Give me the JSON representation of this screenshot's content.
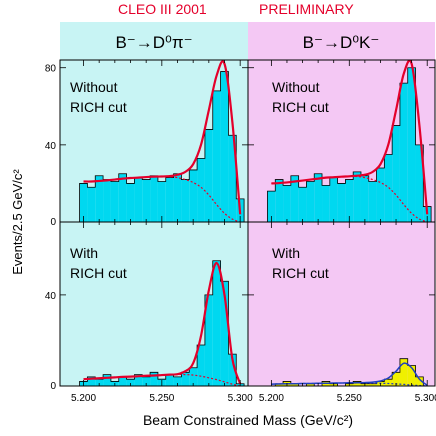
{
  "header": {
    "experiment": "CLEO III 2001",
    "status": "PRELIMINARY",
    "left_channel": "B⁻→D⁰π⁻",
    "right_channel": "B⁻→D⁰K⁻"
  },
  "labels": {
    "ylabel": "Events/2.5 GeV/c²",
    "xlabel": "Beam Constrained Mass (GeV/c²)"
  },
  "colors": {
    "left_background": "#c8f4f4",
    "right_background": "#f4c8f4",
    "histogram_fill": "#00d8f0",
    "fit_line": "#e4002b",
    "header_text": "#e4002b",
    "yellow_fill": "#f0f000",
    "blue_line": "#2040c0"
  },
  "chart_data": [
    {
      "type": "histogram",
      "panel": "top-left",
      "channel": "B⁻→D⁰π⁻",
      "annotation": [
        "Without",
        "RICH cut"
      ],
      "xlim": [
        5.185,
        5.305
      ],
      "ylim": [
        0,
        84
      ],
      "yticks": [
        0,
        40,
        80
      ],
      "x": [
        5.2,
        5.205,
        5.21,
        5.215,
        5.22,
        5.225,
        5.23,
        5.235,
        5.24,
        5.245,
        5.25,
        5.255,
        5.26,
        5.265,
        5.27,
        5.275,
        5.28,
        5.285,
        5.29,
        5.295,
        5.3
      ],
      "counts": [
        20,
        18,
        24,
        22,
        21,
        25,
        20,
        23,
        22,
        24,
        21,
        23,
        25,
        22,
        27,
        33,
        48,
        68,
        78,
        45,
        12
      ],
      "fit": [
        21,
        21,
        21.3,
        21.6,
        22,
        22.5,
        22.8,
        23,
        23.3,
        23.5,
        23.6,
        23.8,
        24.5,
        26,
        30,
        40,
        58,
        76,
        82,
        52,
        4
      ],
      "background_fit": [
        21,
        21,
        21.3,
        21.6,
        22,
        22.5,
        22.8,
        23,
        23.3,
        23.5,
        23.6,
        23.5,
        23,
        22,
        20.5,
        18,
        14,
        9,
        4.5,
        1.5,
        0
      ]
    },
    {
      "type": "histogram",
      "panel": "top-right",
      "channel": "B⁻→D⁰K⁻",
      "annotation": [
        "Without",
        "RICH cut"
      ],
      "xlim": [
        5.185,
        5.305
      ],
      "ylim": [
        0,
        84
      ],
      "yticks": [
        0,
        40,
        80
      ],
      "x": [
        5.2,
        5.205,
        5.21,
        5.215,
        5.22,
        5.225,
        5.23,
        5.235,
        5.24,
        5.245,
        5.25,
        5.255,
        5.26,
        5.265,
        5.27,
        5.275,
        5.28,
        5.285,
        5.29,
        5.295,
        5.3
      ],
      "counts": [
        16,
        22,
        19,
        24,
        18,
        21,
        25,
        19,
        23,
        20,
        22,
        26,
        24,
        21,
        28,
        35,
        50,
        72,
        80,
        40,
        8
      ],
      "fit": [
        20,
        20.2,
        20.5,
        21,
        21.5,
        22,
        22.5,
        23,
        23.2,
        23.5,
        23.7,
        24,
        24.5,
        26,
        30,
        40,
        58,
        77,
        82,
        50,
        4
      ],
      "background_fit": [
        20,
        20.2,
        20.5,
        21,
        21.5,
        22,
        22.5,
        23,
        23.2,
        23.5,
        23.7,
        23.6,
        23,
        22,
        20.5,
        18,
        14,
        9,
        4.5,
        1.5,
        0
      ]
    },
    {
      "type": "histogram",
      "panel": "bottom-left",
      "channel": "B⁻→D⁰π⁻",
      "annotation": [
        "With",
        "RICH cut"
      ],
      "xlim": [
        5.185,
        5.305
      ],
      "ylim": [
        0,
        72
      ],
      "yticks": [
        0,
        40
      ],
      "x": [
        5.2,
        5.205,
        5.21,
        5.215,
        5.22,
        5.225,
        5.23,
        5.235,
        5.24,
        5.245,
        5.25,
        5.255,
        5.26,
        5.265,
        5.27,
        5.275,
        5.28,
        5.285,
        5.29,
        5.295,
        5.3
      ],
      "counts": [
        2,
        4,
        3,
        5,
        2,
        4,
        3,
        5,
        4,
        6,
        3,
        5,
        4,
        6,
        8,
        18,
        40,
        55,
        46,
        14,
        1
      ],
      "fit": [
        3,
        3.2,
        3.4,
        3.6,
        3.8,
        4,
        4.1,
        4.3,
        4.5,
        4.6,
        4.8,
        5,
        5.2,
        6.5,
        10,
        22,
        42,
        54,
        40,
        12,
        1
      ],
      "background_fit": [
        3,
        3.2,
        3.4,
        3.6,
        3.8,
        4,
        4.1,
        4.3,
        4.5,
        4.6,
        4.8,
        4.9,
        5,
        5,
        4.8,
        4.3,
        3.6,
        2.8,
        1.8,
        0.8,
        0
      ]
    },
    {
      "type": "histogram",
      "panel": "bottom-right",
      "channel": "B⁻→D⁰K⁻",
      "annotation": [
        "With",
        "RICH cut"
      ],
      "xlim": [
        5.185,
        5.305
      ],
      "ylim": [
        0,
        72
      ],
      "yticks": [
        0,
        40
      ],
      "x": [
        5.2,
        5.205,
        5.21,
        5.215,
        5.22,
        5.225,
        5.23,
        5.235,
        5.24,
        5.245,
        5.25,
        5.255,
        5.26,
        5.265,
        5.27,
        5.275,
        5.28,
        5.285,
        5.29,
        5.295,
        5.3
      ],
      "counts": [
        0,
        1,
        2,
        1,
        0,
        1,
        0,
        2,
        1,
        0,
        1,
        2,
        1,
        1,
        2,
        3,
        6,
        12,
        9,
        4,
        0
      ],
      "fit": [
        0.8,
        0.9,
        1,
        1,
        1.1,
        1.1,
        1.2,
        1.2,
        1.3,
        1.3,
        1.4,
        1.4,
        1.5,
        1.7,
        2.2,
        3.5,
        6.5,
        10,
        8,
        3,
        0.3
      ],
      "background_fit": [
        0.8,
        0.9,
        1,
        1,
        1.1,
        1.1,
        1.2,
        1.2,
        1.3,
        1.3,
        1.4,
        1.4,
        1.4,
        1.3,
        1.2,
        1.1,
        0.9,
        0.7,
        0.4,
        0.2,
        0
      ]
    }
  ],
  "x_tick_labels": [
    "5.200",
    "5.250",
    "5.300"
  ]
}
